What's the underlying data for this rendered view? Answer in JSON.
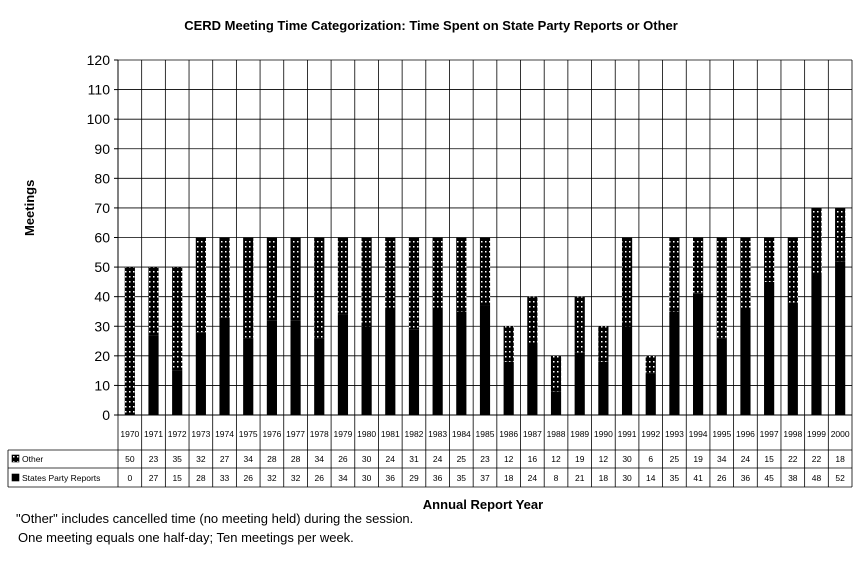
{
  "chart_data": {
    "type": "bar",
    "stacked": true,
    "title": "CERD Meeting Time Categorization: Time Spent on State Party Reports or Other",
    "xlabel": "Annual Report Year",
    "ylabel": "Meetings",
    "ylim": [
      0,
      120
    ],
    "yticks": [
      "0",
      "10",
      "20",
      "30",
      "40",
      "50",
      "60",
      "70",
      "80",
      "90",
      "100",
      "110",
      "120"
    ],
    "grid": true,
    "categories": [
      "1970",
      "1971",
      "1972",
      "1973",
      "1974",
      "1975",
      "1976",
      "1977",
      "1978",
      "1979",
      "1980",
      "1981",
      "1982",
      "1983",
      "1984",
      "1985",
      "1986",
      "1987",
      "1988",
      "1989",
      "1990",
      "1991",
      "1992",
      "1993",
      "1994",
      "1995",
      "1996",
      "1997",
      "1998",
      "1999",
      "2000"
    ],
    "series": [
      {
        "name": "States Party Reports",
        "values": [
          0,
          27,
          15,
          28,
          33,
          26,
          32,
          32,
          26,
          34,
          30,
          36,
          29,
          36,
          35,
          37,
          18,
          24,
          8,
          21,
          18,
          30,
          14,
          35,
          41,
          26,
          36,
          45,
          38,
          48,
          52
        ],
        "color": "#000000",
        "pattern": "solid"
      },
      {
        "name": "Other",
        "values": [
          50,
          23,
          35,
          32,
          27,
          34,
          28,
          28,
          34,
          26,
          30,
          24,
          31,
          24,
          25,
          23,
          12,
          16,
          12,
          19,
          12,
          30,
          6,
          25,
          19,
          34,
          24,
          15,
          22,
          22,
          18
        ],
        "color": "#000000",
        "pattern": "dotted"
      }
    ]
  },
  "notes": [
    "\"Other\" includes cancelled time (no meeting held) during the session.",
    "One meeting equals one half-day; Ten meetings per week."
  ]
}
